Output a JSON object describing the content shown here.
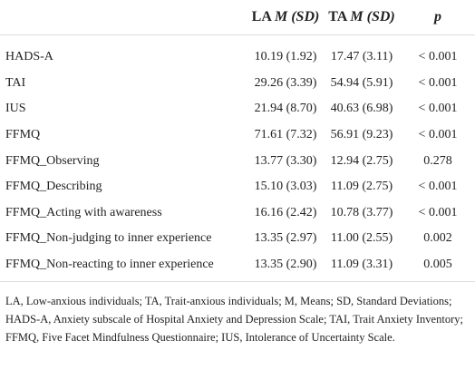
{
  "table": {
    "header": [
      {
        "group": "LA",
        "stat": "M (SD)"
      },
      {
        "group": "TA",
        "stat": "M (SD)"
      },
      {
        "stat": "p"
      }
    ],
    "rows": [
      [
        "HADS-A",
        "10.19 (1.92)",
        "17.47 (3.11)",
        "< 0.001"
      ],
      [
        "TAI",
        "29.26 (3.39)",
        "54.94 (5.91)",
        "< 0.001"
      ],
      [
        "IUS",
        "21.94 (8.70)",
        "40.63 (6.98)",
        "< 0.001"
      ],
      [
        "FFMQ",
        "71.61 (7.32)",
        "56.91 (9.23)",
        "< 0.001"
      ],
      [
        "FFMQ_Observing",
        "13.77 (3.30)",
        "12.94 (2.75)",
        "0.278"
      ],
      [
        "FFMQ_Describing",
        "15.10 (3.03)",
        "11.09 (2.75)",
        "< 0.001"
      ],
      [
        "FFMQ_Acting with awareness",
        "16.16 (2.42)",
        "10.78 (3.77)",
        "< 0.001"
      ],
      [
        "FFMQ_Non-judging to inner experience",
        "13.35 (2.97)",
        "11.00 (2.55)",
        "0.002"
      ],
      [
        "FFMQ_Non-reacting to inner experience",
        "13.35 (2.90)",
        "11.09 (3.31)",
        "0.005"
      ]
    ],
    "footnote": "LA, Low-anxious individuals; TA, Trait-anxious individuals; M, Means; SD, Standard Deviations; HADS-A, Anxiety subscale of Hospital Anxiety and Depression Scale; TAI, Trait Anxiety Inventory; FFMQ, Five Facet Mindfulness Questionnaire; IUS, Intolerance of Uncertainty Scale."
  }
}
